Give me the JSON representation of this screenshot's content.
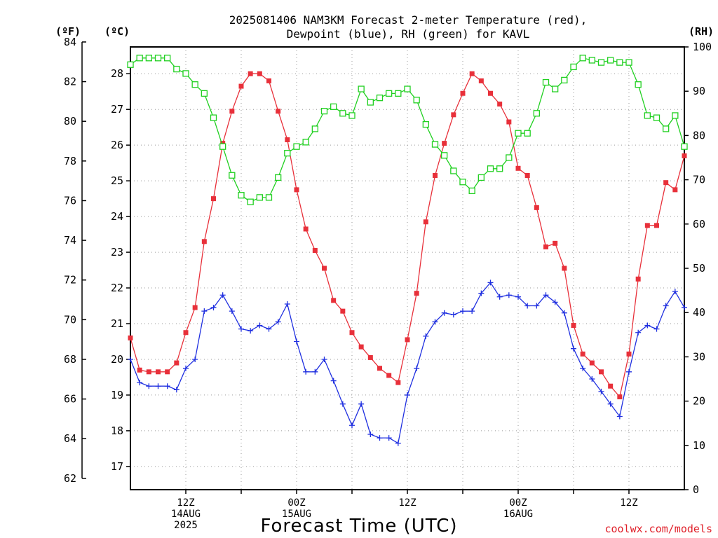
{
  "chart_data": {
    "type": "line",
    "title_line1": "2025081406 NAM3KM Forecast 2-meter Temperature (red),",
    "title_line2": "Dewpoint (blue), RH (green) for KAVL",
    "xlabel": "Forecast Time (UTC)",
    "credit": "coolwx.com/models",
    "units": {
      "left_outer": "(ºF)",
      "left_inner": "(ºC)",
      "right": "(RH)"
    },
    "axes": {
      "temp_c": {
        "min": 16.35,
        "max": 28.75,
        "ticks": [
          17,
          18,
          19,
          20,
          21,
          22,
          23,
          24,
          25,
          26,
          27,
          28
        ]
      },
      "temp_f": {
        "ticks": [
          62,
          64,
          66,
          68,
          70,
          72,
          74,
          76,
          78,
          80,
          82,
          84
        ]
      },
      "rh": {
        "min": 0,
        "max": 100,
        "ticks": [
          0,
          10,
          20,
          30,
          40,
          50,
          60,
          70,
          80,
          90,
          100
        ]
      },
      "x_hours": {
        "min": 6,
        "max": 66
      },
      "grid": true
    },
    "x_labels": [
      {
        "hour": 12,
        "lines": [
          "12Z",
          "14AUG",
          "2025"
        ]
      },
      {
        "hour": 24,
        "lines": [
          "00Z",
          "15AUG"
        ]
      },
      {
        "hour": 36,
        "lines": [
          "12Z"
        ]
      },
      {
        "hour": 48,
        "lines": [
          "00Z",
          "16AUG"
        ]
      },
      {
        "hour": 60,
        "lines": [
          "12Z"
        ]
      }
    ],
    "series": [
      {
        "name": "2-meter Temperature",
        "color": "#e8303a",
        "marker": "filled-square",
        "axis": "temp_c",
        "start_hour": 6,
        "values": [
          20.6,
          19.7,
          19.65,
          19.65,
          19.65,
          19.9,
          20.75,
          21.45,
          23.3,
          24.5,
          26.05,
          26.95,
          27.65,
          28.0,
          28.0,
          27.8,
          26.95,
          26.15,
          24.75,
          23.65,
          23.05,
          22.55,
          21.65,
          21.35,
          20.75,
          20.35,
          20.05,
          19.75,
          19.55,
          19.35,
          20.55,
          21.85,
          23.85,
          25.15,
          26.05,
          26.85,
          27.45,
          28.0,
          27.8,
          27.45,
          27.15,
          26.65,
          25.35,
          25.15,
          24.25,
          23.15,
          23.25,
          22.55,
          20.95,
          20.15,
          19.9,
          19.65,
          19.25,
          18.95,
          20.15,
          22.25,
          23.75,
          23.75,
          24.95,
          24.75,
          25.7
        ]
      },
      {
        "name": "Dewpoint",
        "color": "#2030e0",
        "marker": "plus",
        "axis": "temp_c",
        "start_hour": 6,
        "values": [
          20.0,
          19.35,
          19.25,
          19.25,
          19.25,
          19.15,
          19.75,
          20.0,
          21.35,
          21.45,
          21.8,
          21.35,
          20.85,
          20.8,
          20.95,
          20.85,
          21.05,
          21.55,
          20.5,
          19.65,
          19.65,
          20.0,
          19.4,
          18.75,
          18.15,
          18.75,
          17.9,
          17.8,
          17.8,
          17.65,
          19.0,
          19.75,
          20.65,
          21.05,
          21.3,
          21.25,
          21.35,
          21.35,
          21.85,
          22.15,
          21.75,
          21.8,
          21.75,
          21.5,
          21.5,
          21.8,
          21.6,
          21.3,
          20.3,
          19.75,
          19.45,
          19.1,
          18.75,
          18.4,
          19.65,
          20.75,
          20.95,
          20.85,
          21.5,
          21.9,
          21.45
        ]
      },
      {
        "name": "RH",
        "color": "#20d020",
        "marker": "open-square",
        "axis": "rh",
        "start_hour": 6,
        "values": [
          96,
          97.5,
          97.5,
          97.5,
          97.5,
          95,
          94,
          91.5,
          89.5,
          84,
          77.5,
          71,
          66.5,
          65,
          66,
          66,
          70.5,
          76,
          77.5,
          78.5,
          81.5,
          85.5,
          86.5,
          85,
          84.5,
          90.5,
          87.5,
          88.5,
          89.5,
          89.5,
          90.5,
          88,
          82.5,
          78,
          75.5,
          72,
          69.5,
          67.5,
          70.5,
          72.5,
          72.5,
          75,
          80.5,
          80.5,
          85,
          92,
          90.5,
          92.5,
          95.5,
          97.5,
          97,
          96.5,
          97,
          96.5,
          96.5,
          91.5,
          84.5,
          84,
          81.5,
          84.5,
          77.5
        ]
      }
    ]
  }
}
